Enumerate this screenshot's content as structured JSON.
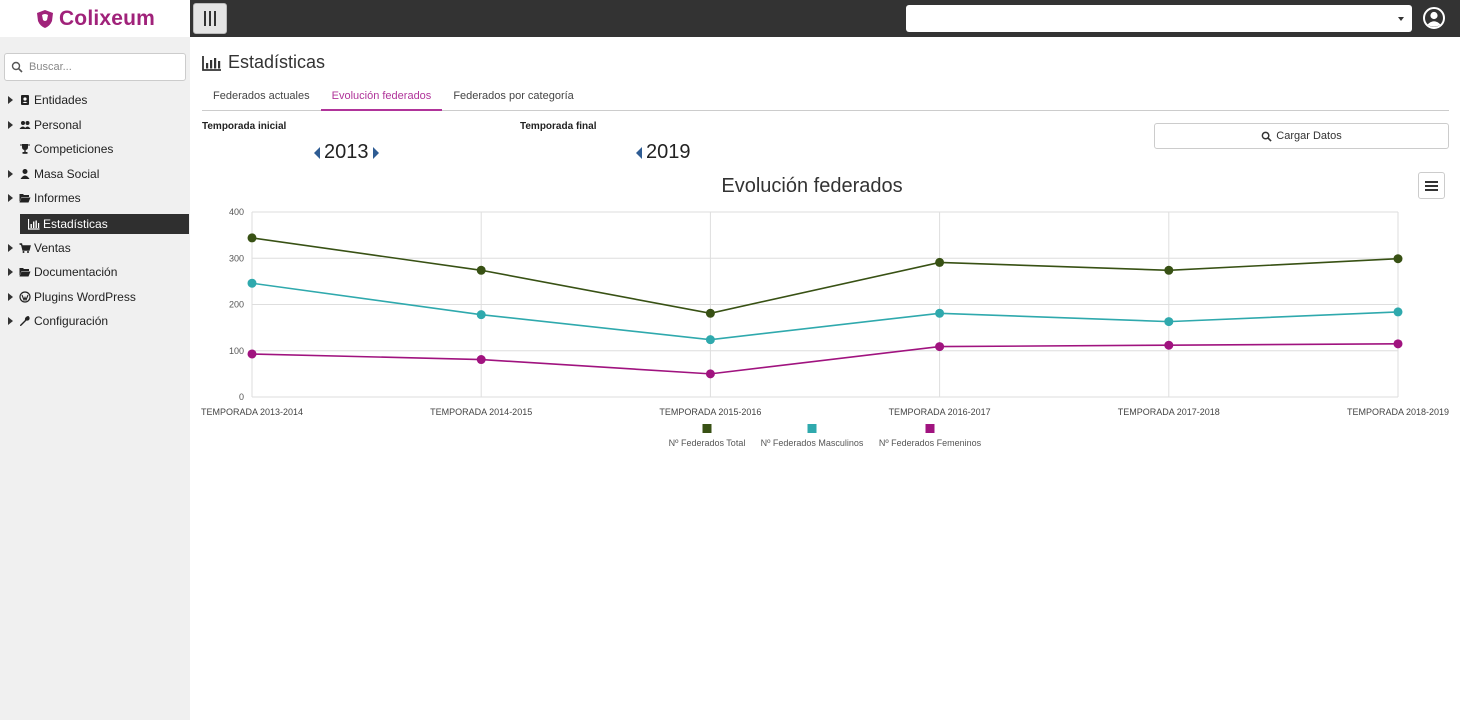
{
  "brand": {
    "name": "Colixeum",
    "color": "#a0227a"
  },
  "sidebar": {
    "search_placeholder": "Buscar...",
    "items": [
      {
        "label": "Entidades",
        "icon": "address-book-icon",
        "has_caret": true
      },
      {
        "label": "Personal",
        "icon": "users-icon",
        "has_caret": true
      },
      {
        "label": "Competiciones",
        "icon": "trophy-icon",
        "has_caret": false
      },
      {
        "label": "Masa Social",
        "icon": "user-icon",
        "has_caret": true
      },
      {
        "label": "Informes",
        "icon": "folder-open-icon",
        "has_caret": true
      },
      {
        "label": "Estadísticas",
        "icon": "bar-chart-icon",
        "active": true
      },
      {
        "label": "Ventas",
        "icon": "shopping-cart-icon",
        "has_caret": true
      },
      {
        "label": "Documentación",
        "icon": "folder-open-icon",
        "has_caret": true
      },
      {
        "label": "Plugins WordPress",
        "icon": "wordpress-icon",
        "has_caret": true
      },
      {
        "label": "Configuración",
        "icon": "wrench-icon",
        "has_caret": true
      }
    ]
  },
  "topbar": {
    "select_value": "",
    "user_icon": "user-circle-icon"
  },
  "main": {
    "title": "Estadísticas",
    "tabs": [
      {
        "label": "Federados actuales",
        "active": false
      },
      {
        "label": "Evolución federados",
        "active": true
      },
      {
        "label": "Federados por categoría",
        "active": false
      }
    ],
    "temporada_inicial_label": "Temporada inicial",
    "temporada_final_label": "Temporada final",
    "temporada_inicial": "2013",
    "temporada_final": "2019",
    "load_button": "Cargar Datos"
  },
  "chart_data": {
    "type": "line",
    "title": "Evolución federados",
    "categories": [
      "TEMPORADA 2013-2014",
      "TEMPORADA 2014-2015",
      "TEMPORADA 2015-2016",
      "TEMPORADA 2016-2017",
      "TEMPORADA 2017-2018",
      "TEMPORADA 2018-2019"
    ],
    "series": [
      {
        "name": "Nº Federados Total",
        "color": "#385114",
        "values": [
          344,
          274,
          181,
          291,
          274,
          299
        ]
      },
      {
        "name": "Nº Federados Masculinos",
        "color": "#2fa9ad",
        "values": [
          246,
          178,
          124,
          181,
          163,
          184
        ]
      },
      {
        "name": "Nº Federados Femeninos",
        "color": "#a0137f",
        "values": [
          93,
          81,
          50,
          109,
          112,
          115
        ]
      }
    ],
    "ylim": [
      0,
      400
    ],
    "yticks": [
      "0",
      "100",
      "200",
      "300",
      "400"
    ],
    "grid": true,
    "legend_position": "bottom-center"
  }
}
